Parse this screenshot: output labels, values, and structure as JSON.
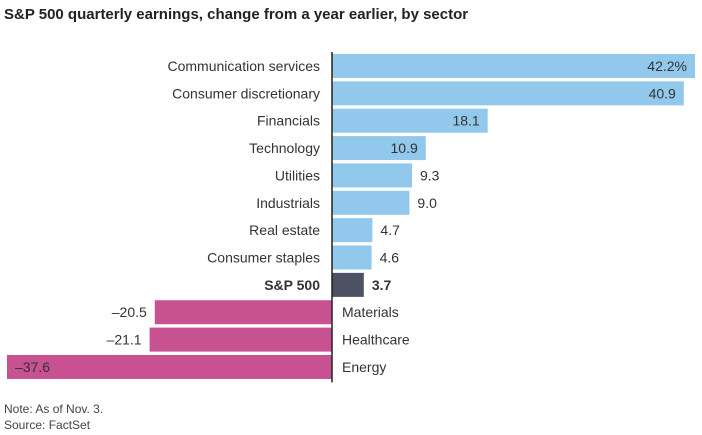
{
  "title": "S&P 500 quarterly earnings, change from a year earlier, by sector",
  "note": "Note: As of Nov. 3.",
  "source": "Source: FactSet",
  "colors": {
    "positive": "#92c8eb",
    "highlight": "#4c5263",
    "negative": "#c85191",
    "axis": "#222222"
  },
  "chart_data": {
    "type": "bar",
    "orientation": "horizontal",
    "title": "S&P 500 quarterly earnings, change from a year earlier, by sector",
    "categories": [
      "Communication services",
      "Consumer discretionary",
      "Financials",
      "Technology",
      "Utilities",
      "Industrials",
      "Real estate",
      "Consumer staples",
      "S&P 500",
      "Materials",
      "Healthcare",
      "Energy"
    ],
    "values": [
      42.2,
      40.9,
      18.1,
      10.9,
      9.3,
      9.0,
      4.7,
      4.6,
      3.7,
      -20.5,
      -21.1,
      -37.6
    ],
    "value_labels": [
      "42.2%",
      "40.9",
      "18.1",
      "10.9",
      "9.3",
      "9.0",
      "4.7",
      "4.6",
      "3.7",
      "–20.5",
      "–21.1",
      "–37.6"
    ],
    "highlight": "S&P 500",
    "unit": "%",
    "xlim": [
      -37.6,
      42.2
    ],
    "grid": false,
    "legend": "none"
  }
}
